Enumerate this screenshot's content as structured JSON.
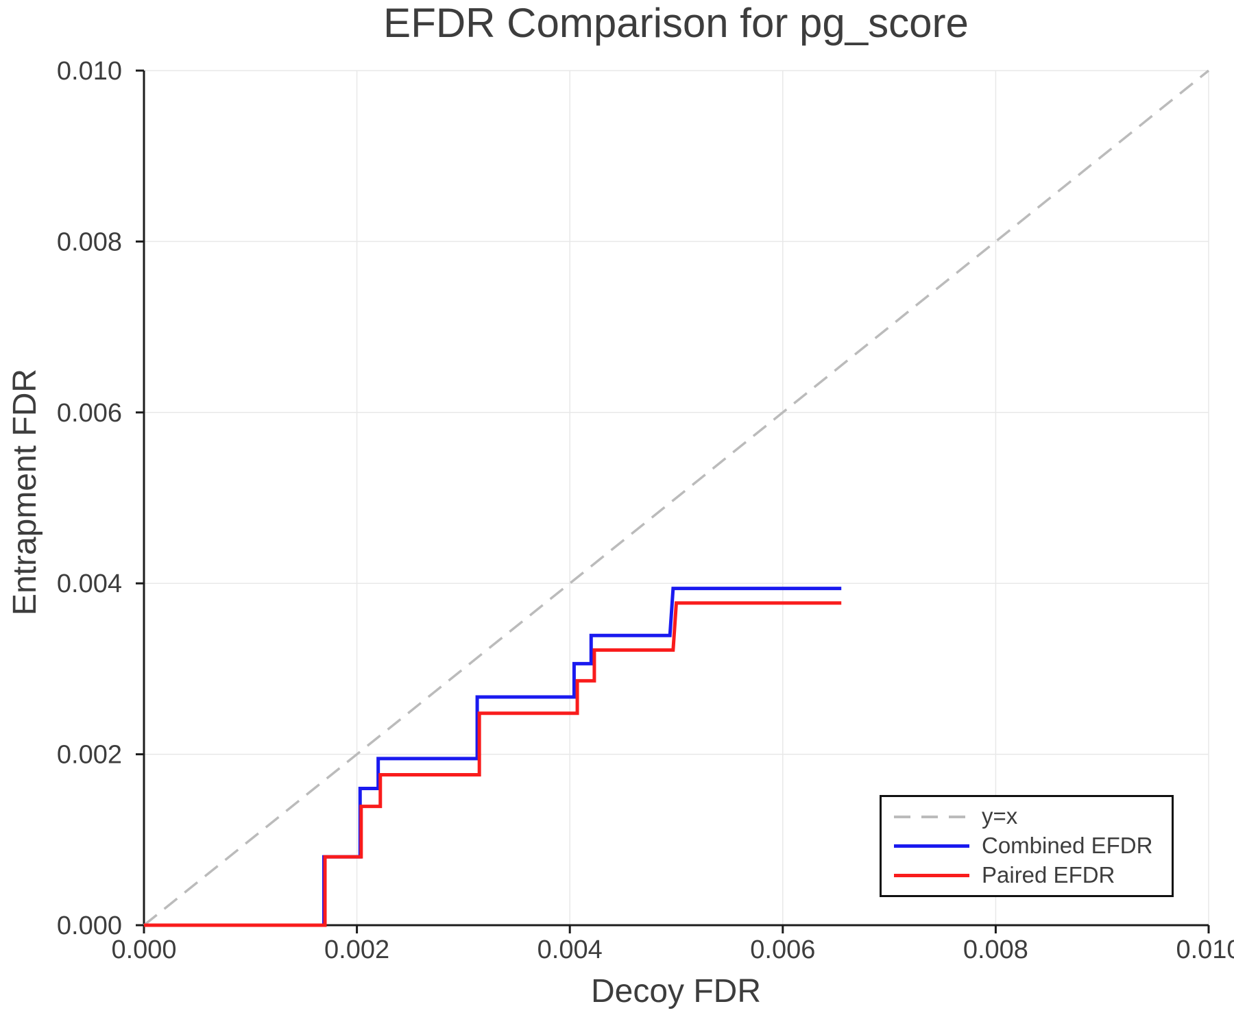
{
  "page": {
    "background": "#ffffff"
  },
  "chart_data": {
    "type": "line",
    "title": "EFDR Comparison for pg_score",
    "xlabel": "Decoy FDR",
    "ylabel": "Entrapment FDR",
    "xlim": [
      0,
      0.01
    ],
    "ylim": [
      0,
      0.01
    ],
    "x_tick_values": [
      0,
      0.002,
      0.004,
      0.006,
      0.008,
      0.01
    ],
    "x_tick_labels": [
      "0.000",
      "0.002",
      "0.004",
      "0.006",
      "0.008",
      "0.010"
    ],
    "y_tick_values": [
      0,
      0.002,
      0.004,
      0.006,
      0.008,
      0.01
    ],
    "y_tick_labels": [
      "0.000",
      "0.002",
      "0.004",
      "0.006",
      "0.008",
      "0.010"
    ],
    "grid": true,
    "legend_position": "lower-right",
    "colors": {
      "background": "#ffffff",
      "grid": "#e8e8e8",
      "spine": "#1c1c1c",
      "text": "#3d3d3d",
      "diagonal": "#bbbbbb",
      "combined": "#1a1aef",
      "paired": "#f91c1c",
      "legend_border": "#111111"
    },
    "series": [
      {
        "name": "y=x",
        "style": "dashed",
        "color": "#bbbbbb",
        "width": 3.5,
        "points": [
          [
            0,
            0
          ],
          [
            0.01,
            0.01
          ]
        ]
      },
      {
        "name": "Combined EFDR",
        "style": "solid",
        "color": "#1a1aef",
        "width": 5,
        "points": [
          [
            0,
            0
          ],
          [
            0.00169,
            0
          ],
          [
            0.00169,
            0.0008
          ],
          [
            0.00203,
            0.0008
          ],
          [
            0.00203,
            0.0016
          ],
          [
            0.0022,
            0.0016
          ],
          [
            0.0022,
            0.00195
          ],
          [
            0.00313,
            0.00195
          ],
          [
            0.00313,
            0.00267
          ],
          [
            0.00404,
            0.00267
          ],
          [
            0.00404,
            0.00306
          ],
          [
            0.0042,
            0.00306
          ],
          [
            0.0042,
            0.00339
          ],
          [
            0.00494,
            0.00339
          ],
          [
            0.00497,
            0.00394
          ],
          [
            0.00655,
            0.00394
          ]
        ]
      },
      {
        "name": "Paired EFDR",
        "style": "solid",
        "color": "#f91c1c",
        "width": 5,
        "points": [
          [
            0,
            0
          ],
          [
            0.0017,
            0
          ],
          [
            0.0017,
            0.0008
          ],
          [
            0.00204,
            0.0008
          ],
          [
            0.00204,
            0.00139
          ],
          [
            0.00222,
            0.00139
          ],
          [
            0.00222,
            0.00176
          ],
          [
            0.00315,
            0.00176
          ],
          [
            0.00315,
            0.00248
          ],
          [
            0.00407,
            0.00248
          ],
          [
            0.00407,
            0.00286
          ],
          [
            0.00423,
            0.00286
          ],
          [
            0.00423,
            0.00322
          ],
          [
            0.00497,
            0.00322
          ],
          [
            0.005,
            0.00377
          ],
          [
            0.00655,
            0.00377
          ]
        ]
      }
    ]
  }
}
